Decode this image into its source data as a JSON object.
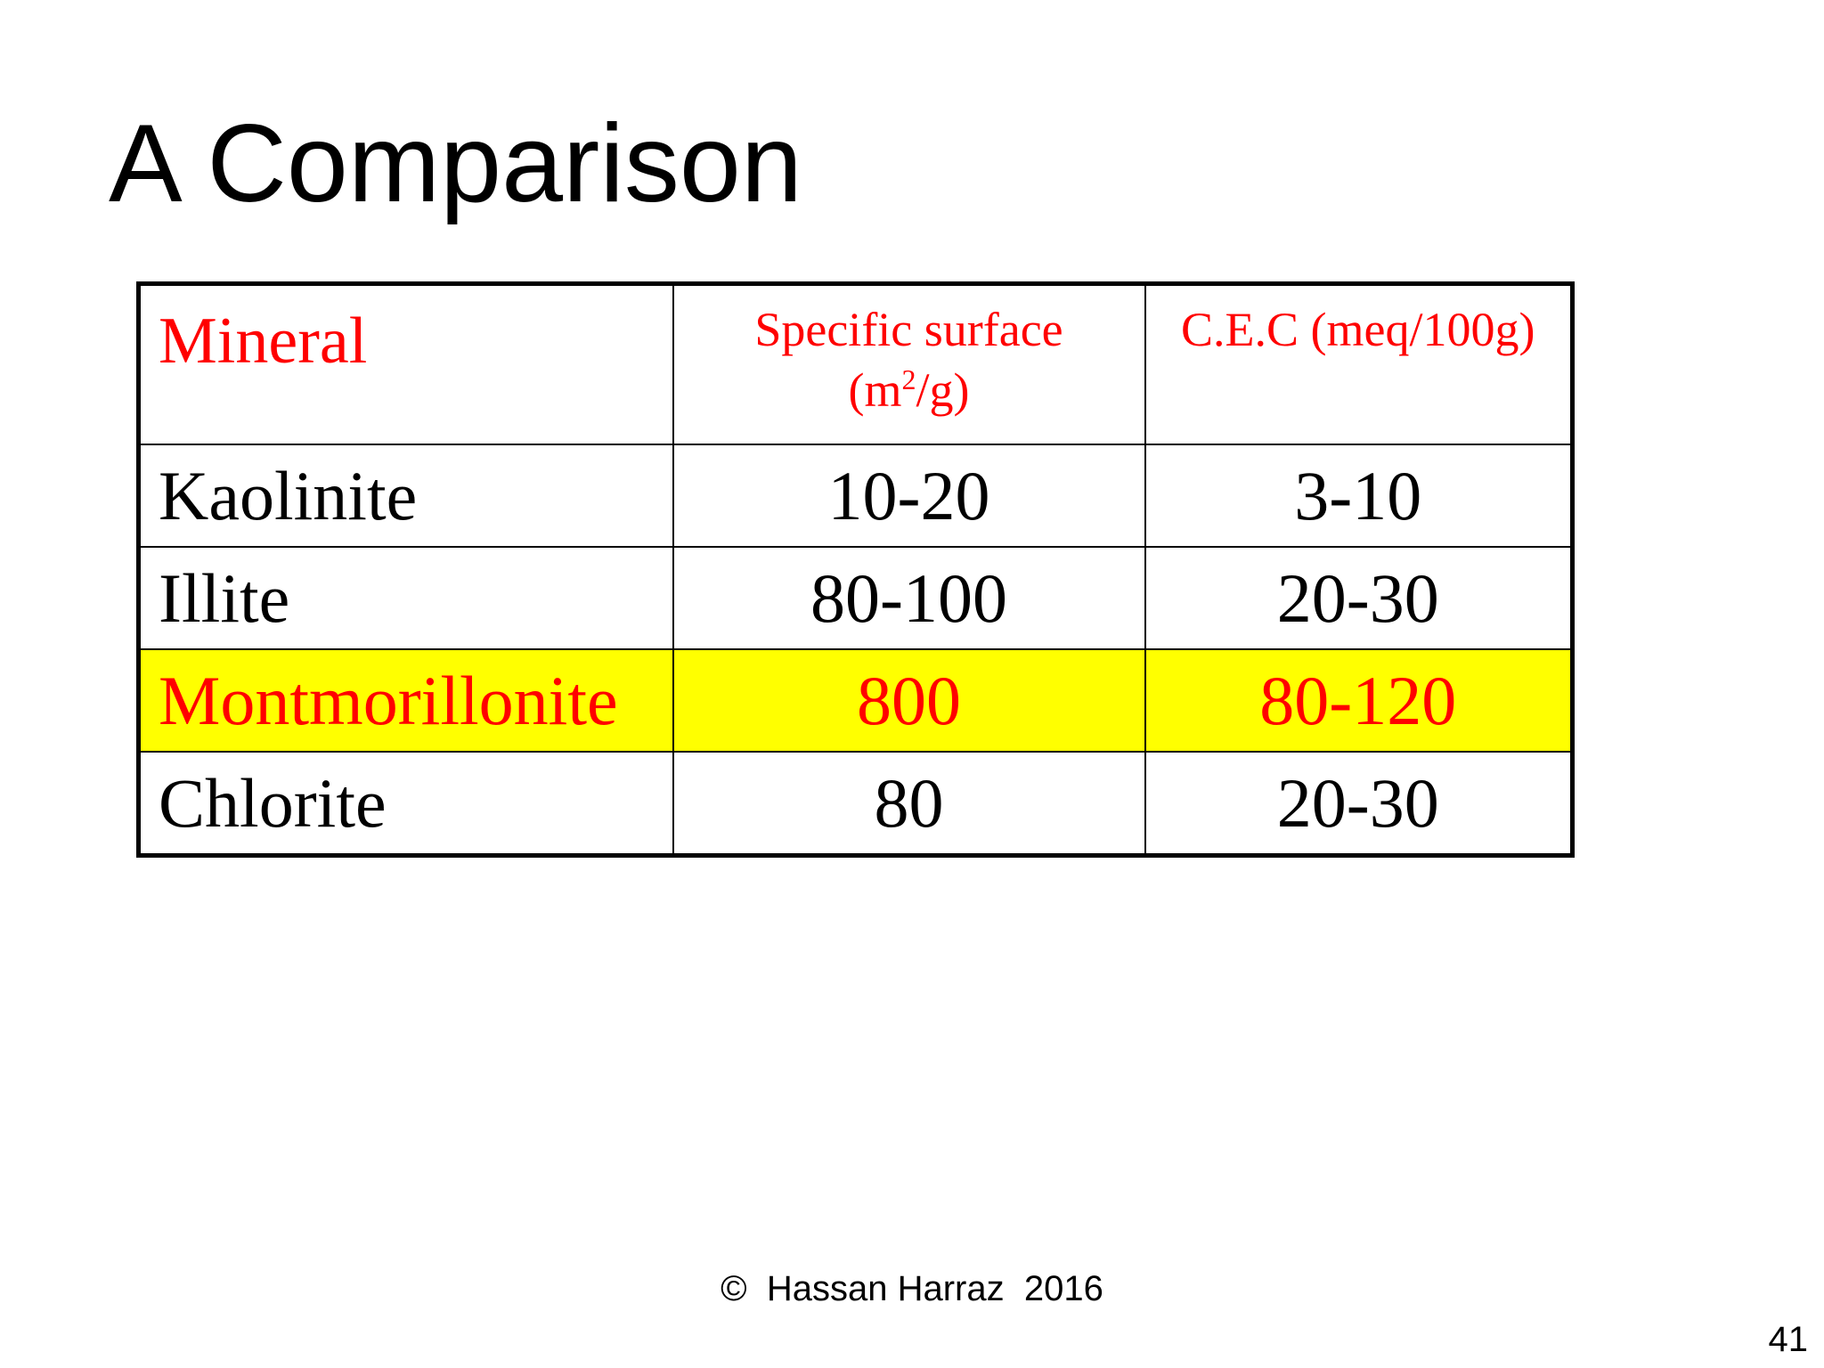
{
  "slide": {
    "title": "A Comparison",
    "footer": "©  Hassan Harraz  2016",
    "page_number": "41"
  },
  "table": {
    "headers": {
      "mineral": "Mineral",
      "surface_line1": "Specific surface",
      "surface_unit_open": "(m",
      "surface_unit_sup": "2",
      "surface_unit_close": "/g)",
      "cec": "C.E.C (meq/100g)"
    },
    "rows": [
      {
        "mineral": "Kaolinite",
        "surface": "10-20",
        "cec": "3-10"
      },
      {
        "mineral": "Illite",
        "surface": "80-100",
        "cec": "20-30"
      },
      {
        "mineral": "Montmorillonite",
        "surface": "800",
        "cec": "80-120"
      },
      {
        "mineral": "Chlorite",
        "surface": "80",
        "cec": "20-30"
      }
    ]
  },
  "colors": {
    "header_text": "#ff0000",
    "highlight_background": "#ffff00",
    "highlight_text": "#ff0000",
    "body_text": "#000000"
  }
}
